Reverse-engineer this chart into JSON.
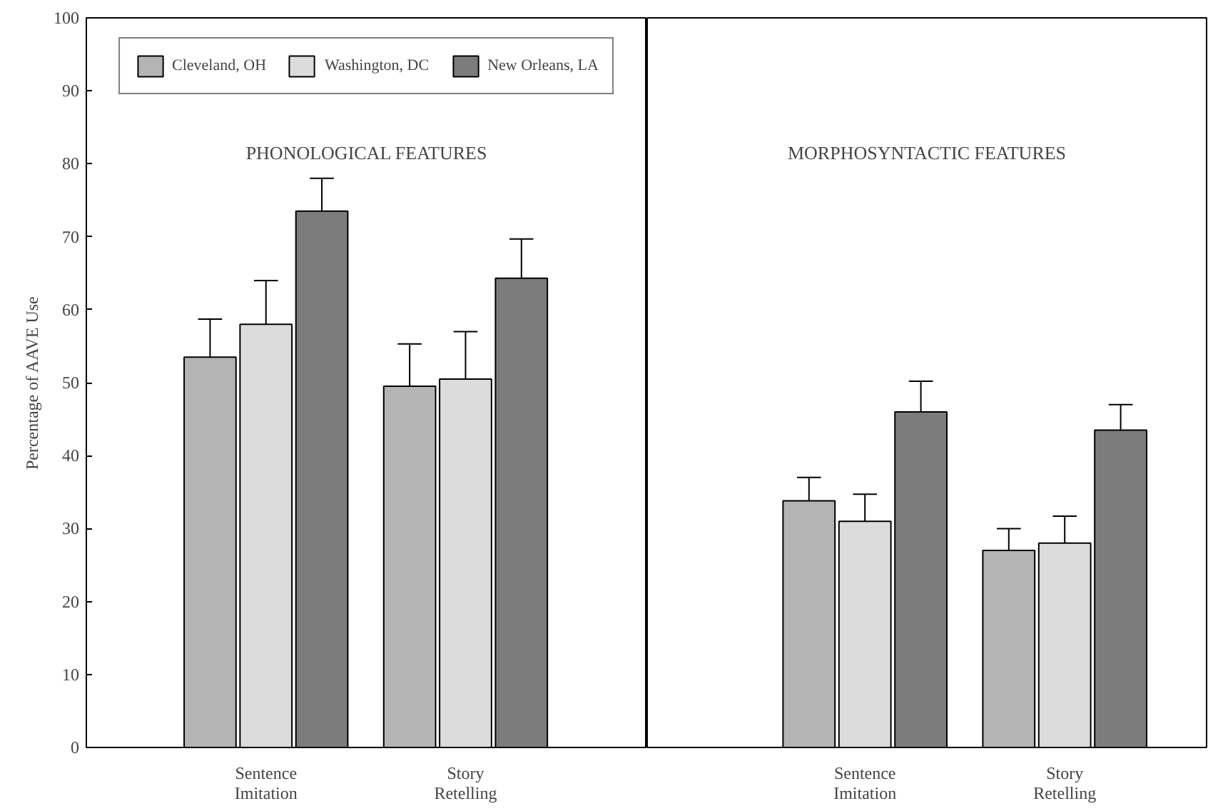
{
  "chart_data": [
    {
      "type": "bar",
      "categories": [
        "Sentence\nImitation",
        "Story\nRetelling"
      ],
      "ylabel": "Percentage of AAVE Use",
      "ylim": [
        0,
        100
      ],
      "yticks": [
        0,
        10,
        20,
        30,
        40,
        50,
        60,
        70,
        80,
        90,
        100
      ],
      "grid": false,
      "legend": "top",
      "annotations": [
        "PHONOLOGICAL FEATURES"
      ],
      "series": [
        {
          "name": "Cleveland, OH",
          "color": "#b4b4b4",
          "values": [
            53.5,
            49.5
          ],
          "errors": [
            [
              53.5,
              58.7
            ],
            [
              49.5,
              55.3
            ]
          ]
        },
        {
          "name": "Washington, DC",
          "color": "#dcdcdc",
          "values": [
            58,
            50.5
          ],
          "errors": [
            [
              58,
              64
            ],
            [
              50.5,
              57
            ]
          ]
        },
        {
          "name": "New Orleans, LA",
          "color": "#7c7c7c",
          "values": [
            73.5,
            64.3
          ],
          "errors": [
            [
              73.5,
              78
            ],
            [
              64.3,
              69.7
            ]
          ]
        }
      ]
    },
    {
      "type": "bar",
      "categories": [
        "Sentence\nImitation",
        "Story\nRetelling"
      ],
      "ylim": [
        0,
        100
      ],
      "yticks": [
        0,
        10,
        20,
        30,
        40,
        50,
        60,
        70,
        80,
        90,
        100
      ],
      "grid": false,
      "tick_labels": "x",
      "annotations": [
        "MORPHOSYNTACTIC FEATURES"
      ],
      "series": [
        {
          "color": "#b4b4b4",
          "values": [
            33.8,
            27
          ],
          "errors": [
            [
              33.8,
              37
            ],
            [
              27,
              30
            ]
          ]
        },
        {
          "color": "#dcdcdc",
          "values": [
            31,
            28
          ],
          "errors": [
            [
              31,
              34.7
            ],
            [
              28,
              31.7
            ]
          ]
        },
        {
          "color": "#7c7c7c",
          "values": [
            46,
            43.5
          ],
          "errors": [
            [
              46,
              50.2
            ],
            [
              43.5,
              47
            ]
          ]
        }
      ]
    }
  ]
}
